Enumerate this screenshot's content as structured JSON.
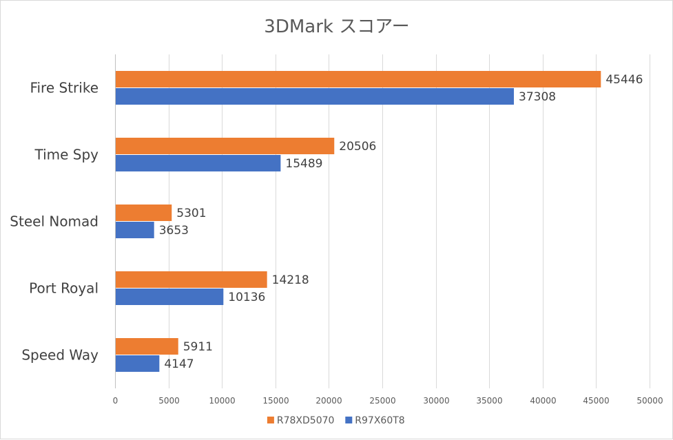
{
  "chart_data": {
    "type": "bar",
    "orientation": "horizontal",
    "title": "3DMark スコアー",
    "categories": [
      "Fire Strike",
      "Time Spy",
      "Steel Nomad",
      "Port Royal",
      "Speed Way"
    ],
    "series": [
      {
        "name": "R78XD5070",
        "color": "#ED7D31",
        "values": [
          45446,
          20506,
          5301,
          14218,
          5911
        ]
      },
      {
        "name": "R97X60T8",
        "color": "#4472C4",
        "values": [
          37308,
          15489,
          3653,
          10136,
          4147
        ]
      }
    ],
    "xlim": [
      0,
      50000
    ],
    "xticks": [
      0,
      5000,
      10000,
      15000,
      20000,
      25000,
      30000,
      35000,
      40000,
      45000,
      50000
    ],
    "xlabel": "",
    "ylabel": "",
    "grid": true,
    "legend_position": "bottom"
  }
}
